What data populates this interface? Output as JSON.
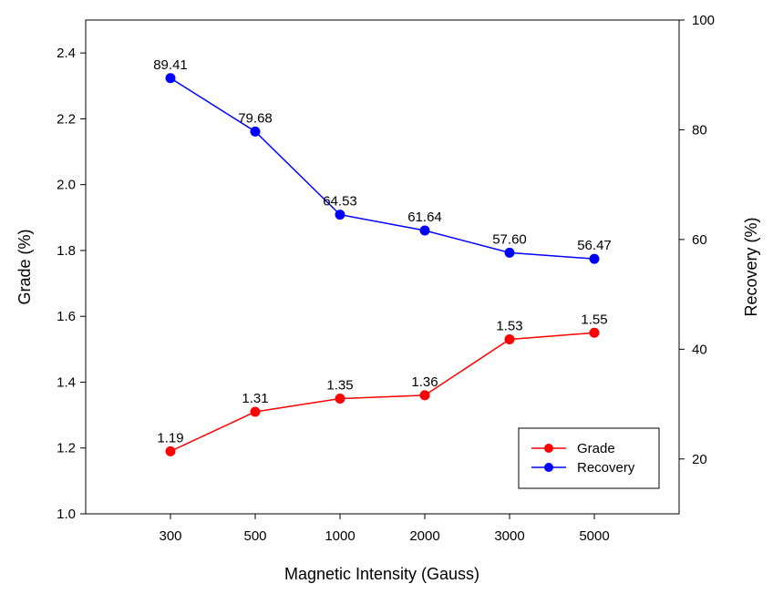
{
  "chart_data": {
    "type": "line",
    "xlabel": "Magnetic Intensity (Gauss)",
    "categories": [
      "300",
      "500",
      "1000",
      "2000",
      "3000",
      "5000"
    ],
    "y_left": {
      "label": "Grade (%)",
      "lim": [
        1.0,
        2.5
      ],
      "ticks": [
        "1.0",
        "1.2",
        "1.4",
        "1.6",
        "1.8",
        "2.0",
        "2.2",
        "2.4"
      ]
    },
    "y_right": {
      "label": "Recovery (%)",
      "lim": [
        10,
        100
      ],
      "ticks": [
        "20",
        "40",
        "60",
        "80",
        "100"
      ]
    },
    "series": [
      {
        "name": "Grade",
        "axis": "left",
        "color": "#ff0000",
        "values": [
          1.19,
          1.31,
          1.35,
          1.36,
          1.53,
          1.55
        ],
        "labels": [
          "1.19",
          "1.31",
          "1.35",
          "1.36",
          "1.53",
          "1.55"
        ]
      },
      {
        "name": "Recovery",
        "axis": "right",
        "color": "#0000ff",
        "values": [
          89.41,
          79.68,
          64.53,
          61.64,
          57.6,
          56.47
        ],
        "labels": [
          "89.41",
          "79.68",
          "64.53",
          "61.64",
          "57.60",
          "56.47"
        ]
      }
    ],
    "legend_position": "bottom-right",
    "grid": false
  }
}
